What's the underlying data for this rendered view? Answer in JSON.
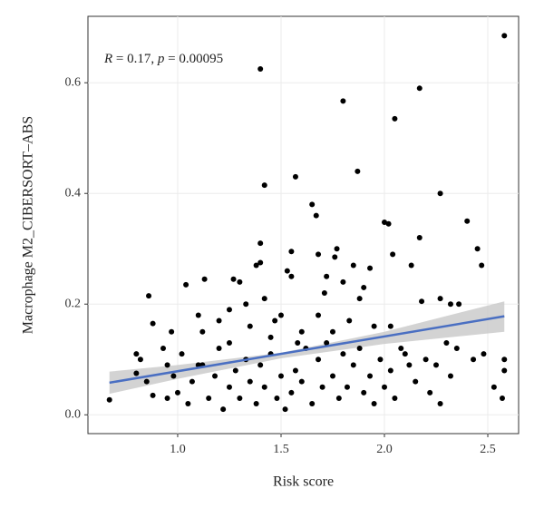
{
  "chart_data": {
    "type": "scatter",
    "annotation": [
      "R",
      " = 0.17, ",
      "p",
      " = 0.00095"
    ],
    "xlabel": "Risk score",
    "ylabel": "Macrophage M2_CIBERSORT–ABS",
    "xlim": [
      0.566,
      2.649
    ],
    "ylim": [
      -0.034,
      0.72
    ],
    "xticks": [
      {
        "value": 1,
        "label": "1.0"
      },
      1.5,
      {
        "value": 2,
        "label": "2.0"
      },
      2.5
    ],
    "yticks": [
      {
        "value": 0,
        "label": "0.0"
      },
      0.2,
      0.4,
      0.6
    ],
    "grid": true,
    "color": "#000000",
    "x": [
      1.4,
      2.58,
      1.8,
      2.17,
      2.05,
      1.87,
      1.42,
      1.57,
      2.27,
      1.65,
      1.67,
      2.4,
      2.0,
      2.02,
      2.45,
      2.47,
      2.17,
      1.4,
      1.55,
      1.77,
      1.76,
      1.68,
      1.85,
      1.93,
      2.13,
      2.04,
      1.4,
      1.38,
      1.53,
      1.55,
      1.72,
      1.8,
      1.9,
      1.27,
      1.3,
      1.13,
      1.04,
      0.86,
      1.71,
      2.18,
      2.27,
      2.32,
      2.36,
      1.88,
      1.42,
      1.33,
      1.5,
      0.88,
      0.97,
      1.1,
      1.12,
      1.2,
      1.25,
      1.35,
      1.45,
      1.6,
      1.68,
      1.75,
      1.83,
      1.95,
      2.03,
      2.1,
      2.2,
      2.25,
      2.3,
      2.35,
      2.48,
      2.58,
      2.58,
      2.57,
      2.53,
      0.67,
      0.8,
      0.82,
      0.8,
      0.85,
      0.88,
      0.93,
      0.95,
      0.98,
      1.0,
      1.02,
      1.05,
      1.07,
      1.1,
      1.15,
      1.18,
      1.2,
      1.22,
      1.25,
      1.28,
      1.3,
      1.33,
      1.35,
      1.38,
      1.4,
      1.42,
      1.45,
      1.48,
      1.5,
      1.52,
      1.55,
      1.57,
      1.6,
      1.62,
      1.65,
      1.68,
      1.7,
      1.72,
      1.75,
      1.78,
      1.8,
      1.82,
      1.85,
      1.88,
      1.9,
      1.93,
      1.95,
      1.98,
      2.0,
      2.03,
      2.05,
      2.08,
      2.12,
      2.15,
      2.22,
      2.27,
      2.32,
      2.43,
      1.25,
      1.47,
      1.58,
      1.12,
      0.95
    ],
    "values": [
      0.625,
      0.685,
      0.567,
      0.59,
      0.535,
      0.44,
      0.415,
      0.43,
      0.4,
      0.38,
      0.36,
      0.35,
      0.348,
      0.345,
      0.3,
      0.27,
      0.32,
      0.31,
      0.295,
      0.3,
      0.285,
      0.29,
      0.27,
      0.265,
      0.27,
      0.29,
      0.275,
      0.27,
      0.26,
      0.25,
      0.25,
      0.24,
      0.23,
      0.245,
      0.24,
      0.245,
      0.235,
      0.215,
      0.22,
      0.205,
      0.21,
      0.2,
      0.2,
      0.21,
      0.21,
      0.2,
      0.18,
      0.165,
      0.15,
      0.18,
      0.15,
      0.17,
      0.19,
      0.16,
      0.14,
      0.15,
      0.18,
      0.15,
      0.17,
      0.16,
      0.16,
      0.11,
      0.1,
      0.09,
      0.13,
      0.12,
      0.11,
      0.1,
      0.08,
      0.03,
      0.05,
      0.027,
      0.11,
      0.1,
      0.075,
      0.06,
      0.035,
      0.12,
      0.09,
      0.07,
      0.04,
      0.11,
      0.02,
      0.06,
      0.09,
      0.03,
      0.07,
      0.12,
      0.01,
      0.05,
      0.08,
      0.03,
      0.1,
      0.06,
      0.02,
      0.09,
      0.05,
      0.11,
      0.03,
      0.07,
      0.01,
      0.04,
      0.08,
      0.06,
      0.12,
      0.02,
      0.1,
      0.05,
      0.13,
      0.07,
      0.03,
      0.11,
      0.05,
      0.09,
      0.12,
      0.04,
      0.07,
      0.02,
      0.1,
      0.05,
      0.08,
      0.03,
      0.12,
      0.09,
      0.06,
      0.04,
      0.02,
      0.07,
      0.1,
      0.13,
      0.17,
      0.13,
      0.09,
      0.03
    ],
    "fit": {
      "color": "#4a6fc2",
      "x": [
        0.67,
        2.58
      ],
      "values": [
        0.058,
        0.178
      ]
    },
    "band": {
      "color": "#c8c8c8",
      "x": [
        0.67,
        1.0,
        1.5,
        2.0,
        2.58
      ],
      "lower": [
        0.038,
        0.065,
        0.102,
        0.128,
        0.15
      ],
      "upper": [
        0.078,
        0.09,
        0.112,
        0.15,
        0.205
      ]
    }
  }
}
